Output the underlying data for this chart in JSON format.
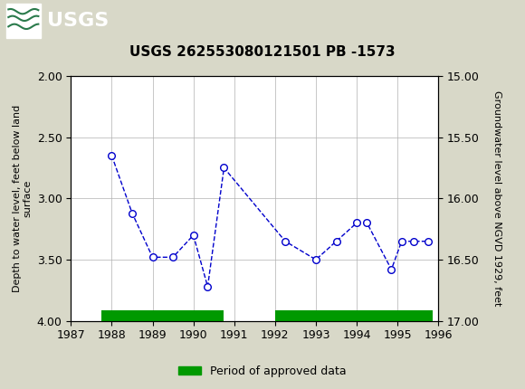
{
  "title": "USGS 262553080121501 PB -1573",
  "ylabel_left": "Depth to water level, feet below land\nsurface",
  "ylabel_right": "Groundwater level above NGVD 1929, feet",
  "ylim_left": [
    2.0,
    4.0
  ],
  "ylim_right": [
    17.0,
    15.0
  ],
  "xlim": [
    1987,
    1996
  ],
  "xticks": [
    1987,
    1988,
    1989,
    1990,
    1991,
    1992,
    1993,
    1994,
    1995,
    1996
  ],
  "yticks_left": [
    2.0,
    2.5,
    3.0,
    3.5,
    4.0
  ],
  "yticks_right": [
    17.0,
    16.5,
    16.0,
    15.5,
    15.0
  ],
  "ytick_labels_right": [
    "17.00",
    "16.50",
    "16.00",
    "15.50",
    "15.00"
  ],
  "data_x": [
    1988.0,
    1988.5,
    1989.0,
    1989.5,
    1990.0,
    1990.35,
    1990.75,
    1992.25,
    1993.0,
    1993.5,
    1994.0,
    1994.25,
    1994.85,
    1995.1,
    1995.4,
    1995.75
  ],
  "data_y": [
    2.65,
    3.12,
    3.48,
    3.48,
    3.3,
    3.72,
    2.75,
    3.35,
    3.5,
    3.35,
    3.2,
    3.2,
    3.58,
    3.35,
    3.35,
    3.35
  ],
  "line_color": "#0000CC",
  "marker_facecolor": "white",
  "marker_edgecolor": "#0000CC",
  "green_bars": [
    {
      "x_start": 1987.75,
      "x_end": 1990.75
    },
    {
      "x_start": 1992.0,
      "x_end": 1995.85
    }
  ],
  "green_color": "#009900",
  "legend_label": "Period of approved data",
  "header_bg": "#1c6e3d",
  "bg_color": "#d8d8c8",
  "plot_bg": "#ffffff",
  "grid_color": "#b0b0b0",
  "title_fontsize": 11,
  "axis_label_fontsize": 8,
  "tick_fontsize": 9
}
